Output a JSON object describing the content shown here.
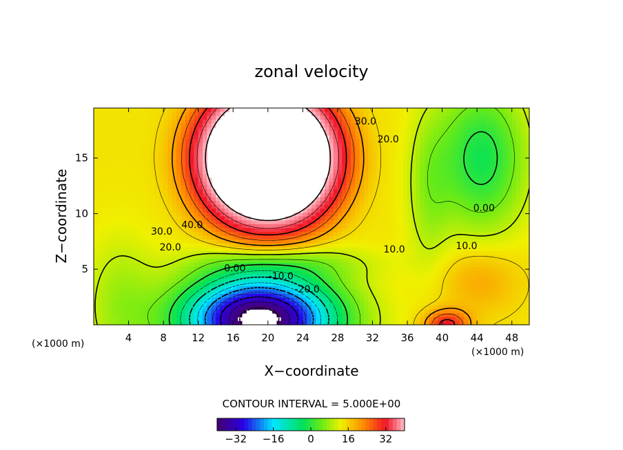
{
  "chart_data": {
    "type": "heatmap",
    "title": "zonal velocity",
    "xlabel": "X−coordinate",
    "ylabel": "Z−coordinate",
    "x_unit": "(×1000 m)",
    "y_unit": "(×1000 m)",
    "xlim": [
      0,
      50
    ],
    "ylim": [
      0,
      19.5
    ],
    "x_ticks": [
      4,
      8,
      12,
      16,
      20,
      24,
      28,
      32,
      36,
      40,
      44,
      48
    ],
    "y_ticks": [
      5,
      10,
      15
    ],
    "contour_interval_text": "CONTOUR INTERVAL = 5.000E+00",
    "contour_labels": [
      {
        "text": "40.0",
        "x": 11.3,
        "z": 8.7
      },
      {
        "text": "30.0",
        "x": 7.8,
        "z": 8.1
      },
      {
        "text": "20.0",
        "x": 8.8,
        "z": 6.7
      },
      {
        "text": "0.00",
        "x": 16.2,
        "z": 4.8
      },
      {
        "text": "-10.0",
        "x": 21.5,
        "z": 4.1
      },
      {
        "text": "-20.0",
        "x": 24.5,
        "z": 2.9
      },
      {
        "text": "30.0",
        "x": 31.2,
        "z": 18.0
      },
      {
        "text": "20.0",
        "x": 33.8,
        "z": 16.4
      },
      {
        "text": "10.0",
        "x": 34.5,
        "z": 6.5
      },
      {
        "text": "0.00",
        "x": 44.8,
        "z": 10.2
      },
      {
        "text": "10.0",
        "x": 42.8,
        "z": 6.8
      }
    ],
    "colorbar": {
      "range": [
        -40,
        40
      ],
      "ticks": [
        -32,
        -16,
        0,
        16,
        32
      ],
      "tick_labels": [
        "−32",
        "−16",
        "0",
        "16",
        "32"
      ]
    },
    "features": [
      {
        "kind": "jet-max",
        "x": 20,
        "z": 15,
        "value": 50
      },
      {
        "kind": "jet-min",
        "x": 19,
        "z": 0.5,
        "value": -45
      },
      {
        "kind": "local-max",
        "x": 44.3,
        "z": 4,
        "value": 17
      },
      {
        "kind": "local-max",
        "x": 40.5,
        "z": 0,
        "value": 27
      },
      {
        "kind": "local-min",
        "x": 44.5,
        "z": 16.5,
        "value": -4
      }
    ]
  }
}
